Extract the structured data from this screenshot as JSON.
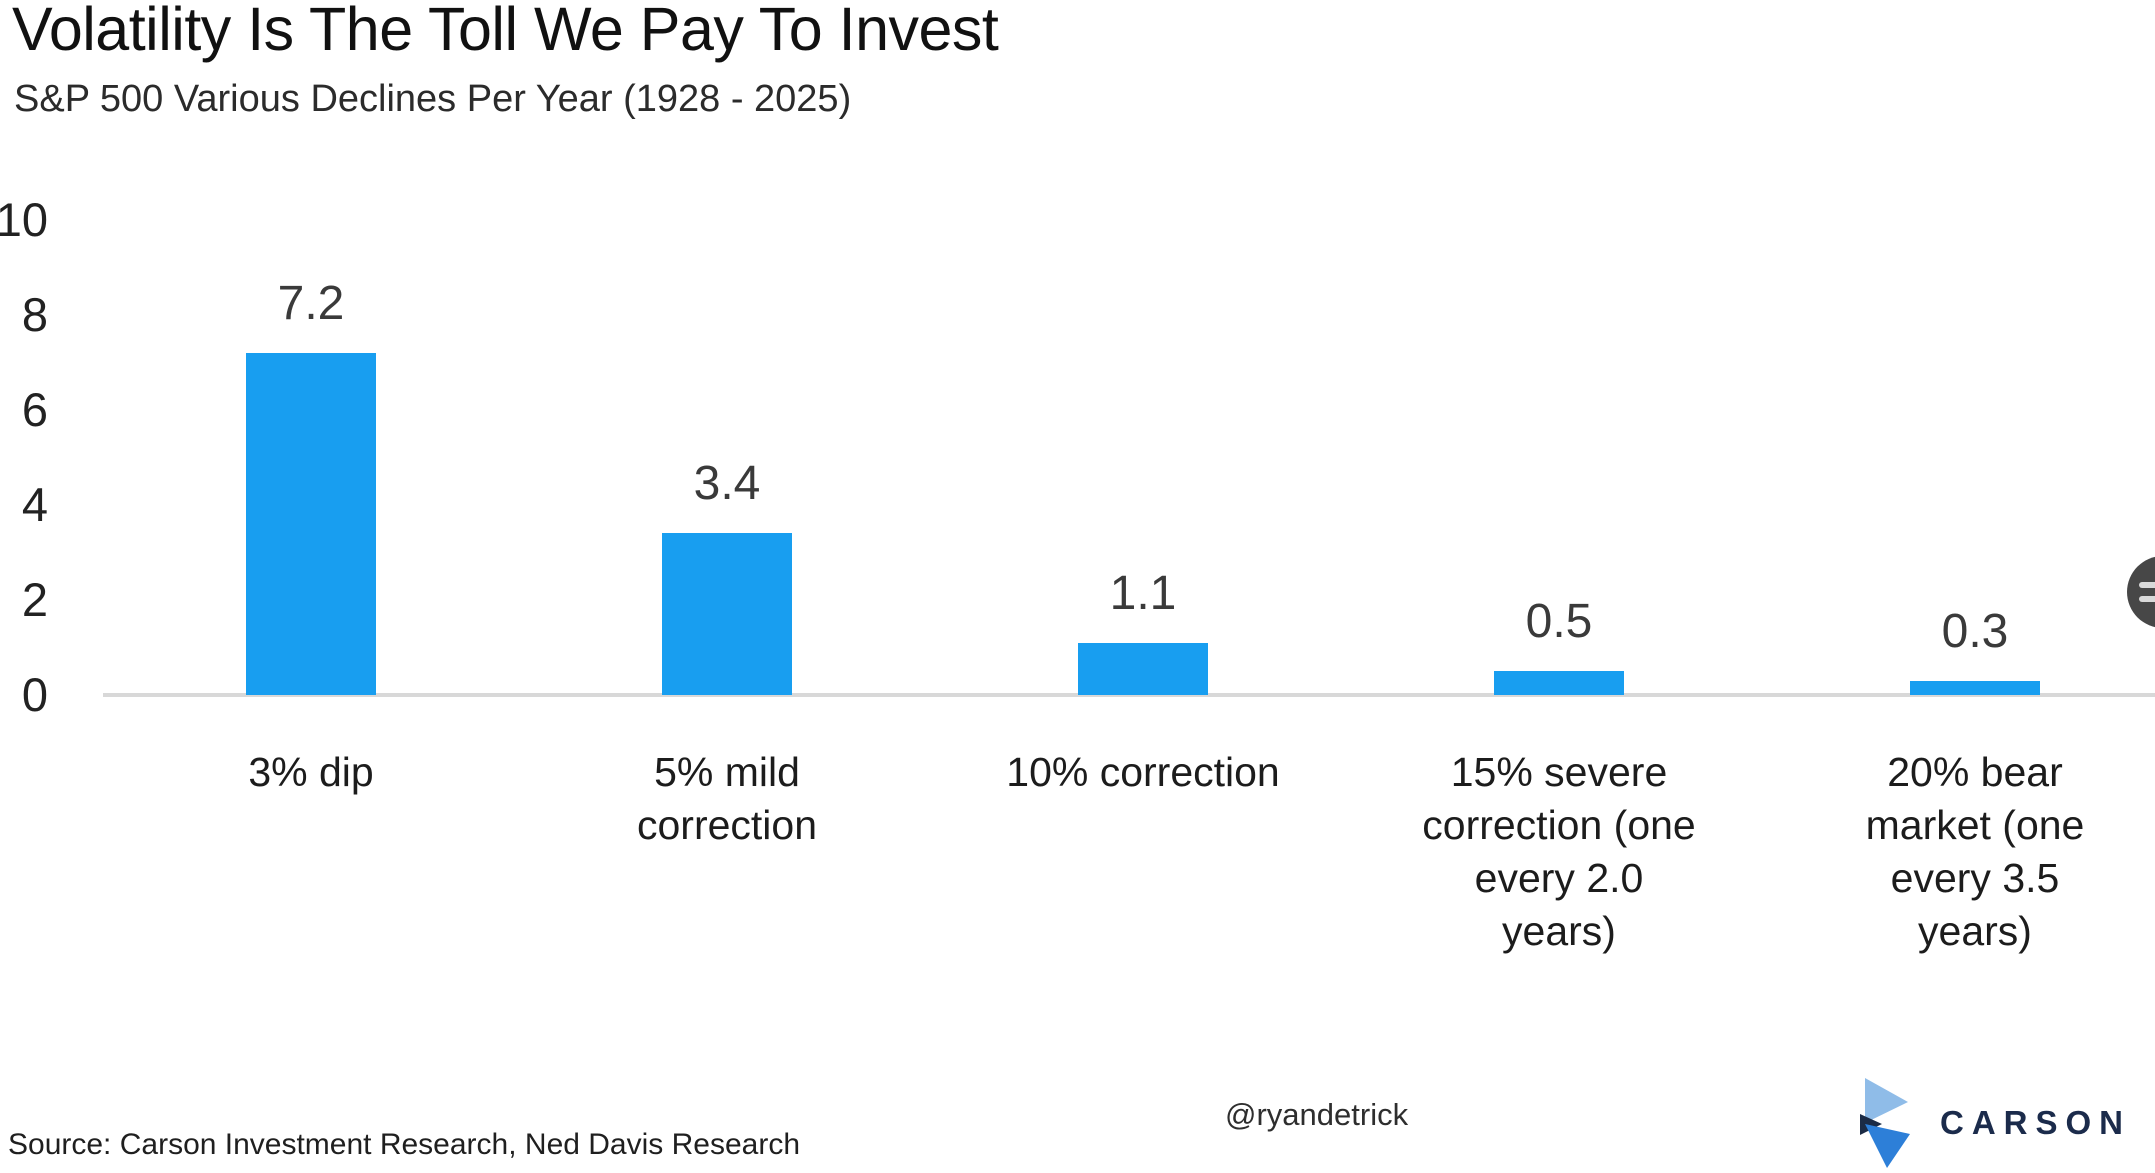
{
  "chart_data": {
    "type": "bar",
    "title": "Volatility Is The Toll We Pay To Invest",
    "subtitle": "S&P 500 Various Declines Per Year (1928 - 2025)",
    "categories": [
      "3% dip",
      "5% mild correction",
      "10% correction",
      "15% severe correction (one every 2.0 years)",
      "20% bear market (one every 3.5 years)"
    ],
    "category_lines": [
      [
        "3% dip"
      ],
      [
        "5% mild",
        "correction"
      ],
      [
        "10% correction"
      ],
      [
        "15% severe",
        "correction (one",
        "every 2.0",
        "years)"
      ],
      [
        "20% bear",
        "market (one",
        "every 3.5",
        "years)"
      ]
    ],
    "values": [
      7.2,
      3.4,
      1.1,
      0.5,
      0.3
    ],
    "value_labels": [
      "7.2",
      "3.4",
      "1.1",
      "0.5",
      "0.3"
    ],
    "xlabel": "",
    "ylabel": "",
    "ylim": [
      0,
      10
    ],
    "yticks": [
      10,
      8,
      6,
      4,
      2,
      0
    ],
    "grid": false,
    "legend": false,
    "bar_color": "#189ef0"
  },
  "footer": {
    "source": "Source: Carson Investment Research, Ned Davis Research",
    "handle": "@ryandetrick",
    "logo_text": "CARSON"
  },
  "colors": {
    "bar": "#189ef0",
    "baseline": "#d8d8d8",
    "value_label": "#3a3a3a",
    "logo_navy": "#1b2b4b",
    "logo_light_blue": "#8fbce8",
    "logo_blue": "#2d7fd8",
    "floating_button_bg": "#474747"
  },
  "floating_button": {
    "icon": "menu-lines-icon"
  }
}
